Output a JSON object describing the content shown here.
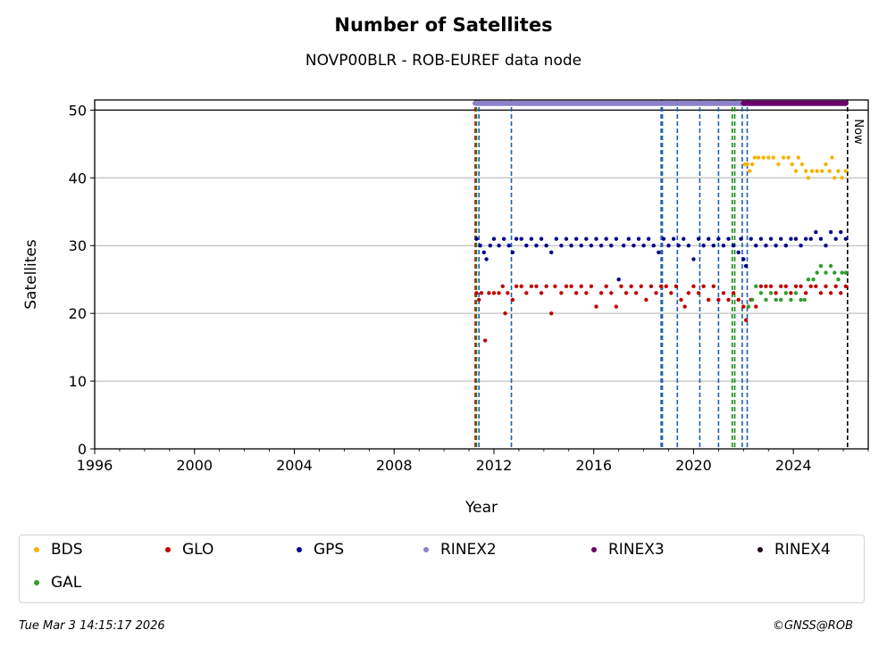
{
  "chart_data": {
    "type": "scatter",
    "title": "Number of Satellites",
    "subtitle": "NOVP00BLR - ROB-EUREF data node",
    "xlabel": "Year",
    "ylabel": "Satellites",
    "xlim": [
      1996.0,
      2027.0
    ],
    "ylim": [
      0,
      51.5
    ],
    "x_ticks": [
      1996,
      2000,
      2004,
      2008,
      2012,
      2016,
      2020,
      2024
    ],
    "x_tick_labels": [
      "1996",
      "2000",
      "2004",
      "2008",
      "2012",
      "2016",
      "2020",
      "2024"
    ],
    "y_ticks": [
      0,
      10,
      20,
      30,
      40,
      50
    ],
    "y_tick_labels": [
      "0",
      "10",
      "20",
      "30",
      "40",
      "50"
    ],
    "grid": "horizontal",
    "reference_line_y": 50,
    "now_label": "Now",
    "now_x": 2026.17,
    "event_lines": [
      {
        "x": 2011.25,
        "color": "#c00000"
      },
      {
        "x": 2011.3,
        "color": "#1a8a1a"
      },
      {
        "x": 2011.4,
        "color": "#1f5fb0"
      },
      {
        "x": 2012.7,
        "color": "#1f5fb0"
      },
      {
        "x": 2018.7,
        "color": "#1f5fb0"
      },
      {
        "x": 2018.75,
        "color": "#1f5fb0"
      },
      {
        "x": 2019.35,
        "color": "#1f5fb0"
      },
      {
        "x": 2020.25,
        "color": "#1f5fb0"
      },
      {
        "x": 2021.0,
        "color": "#1f5fb0"
      },
      {
        "x": 2021.55,
        "color": "#1a8a1a"
      },
      {
        "x": 2021.65,
        "color": "#1a8a1a"
      },
      {
        "x": 2021.95,
        "color": "#1f5fb0"
      },
      {
        "x": 2022.15,
        "color": "#1f5fb0"
      }
    ],
    "series": [
      {
        "name": "BDS",
        "color": "#f5b400",
        "points": [
          [
            2022.05,
            42
          ],
          [
            2022.15,
            42
          ],
          [
            2022.25,
            41
          ],
          [
            2022.35,
            42
          ],
          [
            2022.45,
            43
          ],
          [
            2022.6,
            43
          ],
          [
            2022.8,
            43
          ],
          [
            2023.0,
            43
          ],
          [
            2023.2,
            43
          ],
          [
            2023.4,
            42
          ],
          [
            2023.6,
            43
          ],
          [
            2023.8,
            43
          ],
          [
            2023.95,
            42
          ],
          [
            2024.1,
            41
          ],
          [
            2024.2,
            43
          ],
          [
            2024.35,
            42
          ],
          [
            2024.5,
            41
          ],
          [
            2024.6,
            40
          ],
          [
            2024.75,
            41
          ],
          [
            2024.95,
            41
          ],
          [
            2025.15,
            41
          ],
          [
            2025.3,
            42
          ],
          [
            2025.45,
            41
          ],
          [
            2025.55,
            43
          ],
          [
            2025.65,
            40
          ],
          [
            2025.8,
            41
          ],
          [
            2025.95,
            40
          ],
          [
            2026.1,
            41
          ]
        ]
      },
      {
        "name": "GLO",
        "color": "#c00000",
        "points": [
          [
            2011.3,
            23
          ],
          [
            2011.4,
            22
          ],
          [
            2011.5,
            23
          ],
          [
            2011.65,
            16
          ],
          [
            2011.8,
            23
          ],
          [
            2012.0,
            23
          ],
          [
            2012.2,
            23
          ],
          [
            2012.35,
            24
          ],
          [
            2012.45,
            20
          ],
          [
            2012.55,
            23
          ],
          [
            2012.75,
            22
          ],
          [
            2012.9,
            24
          ],
          [
            2013.1,
            24
          ],
          [
            2013.3,
            23
          ],
          [
            2013.5,
            24
          ],
          [
            2013.7,
            24
          ],
          [
            2013.9,
            23
          ],
          [
            2014.1,
            24
          ],
          [
            2014.3,
            20
          ],
          [
            2014.45,
            24
          ],
          [
            2014.7,
            23
          ],
          [
            2014.9,
            24
          ],
          [
            2015.1,
            24
          ],
          [
            2015.3,
            23
          ],
          [
            2015.5,
            24
          ],
          [
            2015.7,
            23
          ],
          [
            2015.9,
            24
          ],
          [
            2016.1,
            21
          ],
          [
            2016.3,
            23
          ],
          [
            2016.5,
            24
          ],
          [
            2016.7,
            23
          ],
          [
            2016.9,
            21
          ],
          [
            2017.1,
            24
          ],
          [
            2017.3,
            23
          ],
          [
            2017.5,
            24
          ],
          [
            2017.7,
            23
          ],
          [
            2017.9,
            24
          ],
          [
            2018.1,
            22
          ],
          [
            2018.3,
            24
          ],
          [
            2018.5,
            23
          ],
          [
            2018.7,
            24
          ],
          [
            2018.9,
            24
          ],
          [
            2019.1,
            23
          ],
          [
            2019.3,
            24
          ],
          [
            2019.5,
            22
          ],
          [
            2019.65,
            21
          ],
          [
            2019.8,
            23
          ],
          [
            2020.0,
            24
          ],
          [
            2020.2,
            23
          ],
          [
            2020.4,
            24
          ],
          [
            2020.6,
            22
          ],
          [
            2020.8,
            24
          ],
          [
            2021.0,
            22
          ],
          [
            2021.2,
            23
          ],
          [
            2021.4,
            22
          ],
          [
            2021.6,
            23
          ],
          [
            2021.8,
            22
          ],
          [
            2022.0,
            21
          ],
          [
            2022.1,
            19
          ],
          [
            2022.3,
            22
          ],
          [
            2022.5,
            21
          ],
          [
            2022.7,
            24
          ],
          [
            2022.9,
            24
          ],
          [
            2023.1,
            24
          ],
          [
            2023.3,
            23
          ],
          [
            2023.5,
            24
          ],
          [
            2023.7,
            24
          ],
          [
            2023.9,
            23
          ],
          [
            2024.1,
            24
          ],
          [
            2024.3,
            24
          ],
          [
            2024.5,
            23
          ],
          [
            2024.7,
            24
          ],
          [
            2024.9,
            24
          ],
          [
            2025.1,
            23
          ],
          [
            2025.3,
            24
          ],
          [
            2025.5,
            23
          ],
          [
            2025.7,
            24
          ],
          [
            2025.9,
            23
          ],
          [
            2026.1,
            24
          ]
        ]
      },
      {
        "name": "GPS",
        "color": "#00008b",
        "points": [
          [
            2011.3,
            31
          ],
          [
            2011.45,
            30
          ],
          [
            2011.6,
            29
          ],
          [
            2011.7,
            28
          ],
          [
            2011.85,
            30
          ],
          [
            2012.0,
            31
          ],
          [
            2012.2,
            30
          ],
          [
            2012.4,
            31
          ],
          [
            2012.6,
            30
          ],
          [
            2012.75,
            29
          ],
          [
            2012.9,
            31
          ],
          [
            2013.1,
            31
          ],
          [
            2013.3,
            30
          ],
          [
            2013.5,
            31
          ],
          [
            2013.7,
            30
          ],
          [
            2013.9,
            31
          ],
          [
            2014.1,
            30
          ],
          [
            2014.3,
            29
          ],
          [
            2014.5,
            31
          ],
          [
            2014.7,
            30
          ],
          [
            2014.9,
            31
          ],
          [
            2015.1,
            30
          ],
          [
            2015.3,
            31
          ],
          [
            2015.5,
            30
          ],
          [
            2015.7,
            31
          ],
          [
            2015.9,
            30
          ],
          [
            2016.1,
            31
          ],
          [
            2016.3,
            30
          ],
          [
            2016.5,
            31
          ],
          [
            2016.7,
            30
          ],
          [
            2016.9,
            31
          ],
          [
            2017.0,
            25
          ],
          [
            2017.2,
            30
          ],
          [
            2017.4,
            31
          ],
          [
            2017.6,
            30
          ],
          [
            2017.8,
            31
          ],
          [
            2018.0,
            30
          ],
          [
            2018.2,
            31
          ],
          [
            2018.4,
            30
          ],
          [
            2018.6,
            29
          ],
          [
            2018.8,
            31
          ],
          [
            2019.0,
            30
          ],
          [
            2019.2,
            31
          ],
          [
            2019.4,
            30
          ],
          [
            2019.6,
            31
          ],
          [
            2019.8,
            30
          ],
          [
            2020.0,
            28
          ],
          [
            2020.2,
            31
          ],
          [
            2020.4,
            30
          ],
          [
            2020.6,
            31
          ],
          [
            2020.8,
            30
          ],
          [
            2021.0,
            31
          ],
          [
            2021.2,
            30
          ],
          [
            2021.4,
            31
          ],
          [
            2021.6,
            30
          ],
          [
            2021.8,
            29
          ],
          [
            2021.9,
            31
          ],
          [
            2022.0,
            28
          ],
          [
            2022.1,
            27
          ],
          [
            2022.3,
            31
          ],
          [
            2022.5,
            30
          ],
          [
            2022.7,
            31
          ],
          [
            2022.9,
            30
          ],
          [
            2023.1,
            31
          ],
          [
            2023.3,
            30
          ],
          [
            2023.5,
            31
          ],
          [
            2023.7,
            30
          ],
          [
            2023.9,
            31
          ],
          [
            2024.1,
            31
          ],
          [
            2024.3,
            30
          ],
          [
            2024.5,
            31
          ],
          [
            2024.7,
            31
          ],
          [
            2024.9,
            32
          ],
          [
            2025.1,
            31
          ],
          [
            2025.3,
            30
          ],
          [
            2025.5,
            32
          ],
          [
            2025.7,
            31
          ],
          [
            2025.9,
            32
          ],
          [
            2026.1,
            31
          ]
        ]
      },
      {
        "name": "RINEX2",
        "color": "#8c82c8",
        "line": [
          2011.25,
          2022.0
        ],
        "y": 51
      },
      {
        "name": "RINEX3",
        "color": "#6b006b",
        "line": [
          2022.0,
          2026.1
        ],
        "y": 51
      },
      {
        "name": "RINEX4",
        "color": "#1a0a1a",
        "points": []
      },
      {
        "name": "GAL",
        "color": "#2ca02c",
        "points": [
          [
            2022.2,
            21
          ],
          [
            2022.35,
            22
          ],
          [
            2022.5,
            24
          ],
          [
            2022.7,
            23
          ],
          [
            2022.9,
            22
          ],
          [
            2023.1,
            23
          ],
          [
            2023.3,
            22
          ],
          [
            2023.5,
            22
          ],
          [
            2023.7,
            23
          ],
          [
            2023.9,
            22
          ],
          [
            2024.1,
            23
          ],
          [
            2024.3,
            22
          ],
          [
            2024.45,
            22
          ],
          [
            2024.6,
            25
          ],
          [
            2024.8,
            25
          ],
          [
            2024.95,
            26
          ],
          [
            2025.1,
            27
          ],
          [
            2025.3,
            26
          ],
          [
            2025.5,
            27
          ],
          [
            2025.65,
            26
          ],
          [
            2025.8,
            25
          ],
          [
            2025.95,
            26
          ],
          [
            2026.1,
            26
          ]
        ]
      }
    ]
  },
  "legend": [
    {
      "label": "BDS",
      "color": "#f5b400"
    },
    {
      "label": "GLO",
      "color": "#c00000"
    },
    {
      "label": "GPS",
      "color": "#00008b"
    },
    {
      "label": "RINEX2",
      "color": "#8c82c8"
    },
    {
      "label": "RINEX3",
      "color": "#6b006b"
    },
    {
      "label": "RINEX4",
      "color": "#1a0a1a"
    },
    {
      "label": "GAL",
      "color": "#2ca02c"
    }
  ],
  "footer": {
    "date": "Tue Mar  3 14:15:17 2026",
    "copyright": "©GNSS@ROB"
  }
}
